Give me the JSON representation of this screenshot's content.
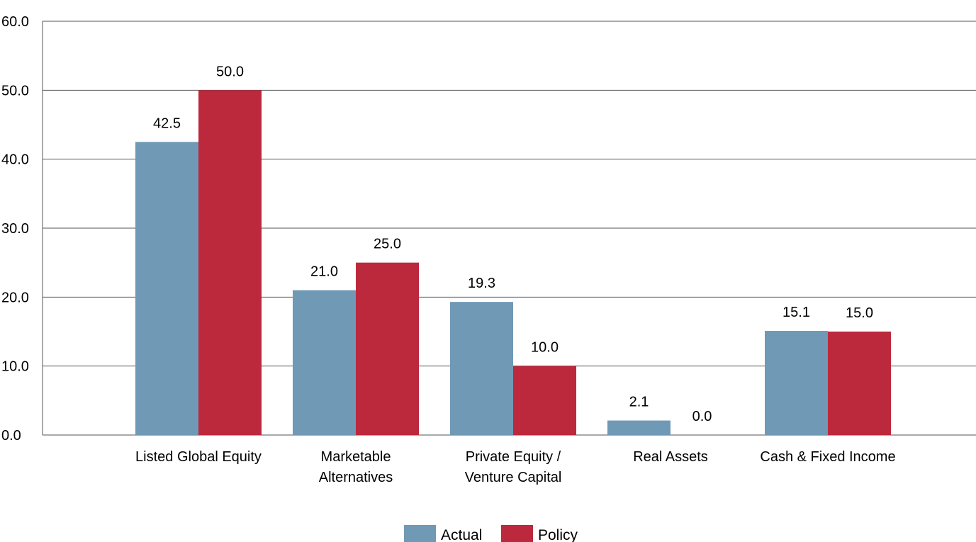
{
  "chart_data": {
    "type": "bar",
    "title": "",
    "xlabel": "",
    "ylabel": "",
    "ylim": [
      0,
      60
    ],
    "yticks": [
      0,
      10,
      20,
      30,
      40,
      50,
      60
    ],
    "ytick_labels": [
      "0.0",
      "10.0",
      "20.0",
      "30.0",
      "40.0",
      "50.0",
      "60.0"
    ],
    "grid": true,
    "legend": "bottom-center",
    "categories": [
      [
        "Listed Global Equity"
      ],
      [
        "Marketable",
        "Alternatives"
      ],
      [
        "Private Equity /",
        "Venture Capital"
      ],
      [
        "Real Assets"
      ],
      [
        "Cash & Fixed Income"
      ]
    ],
    "series": [
      {
        "name": "Actual",
        "color": "#7099b5",
        "values": [
          42.5,
          21.0,
          19.3,
          2.1,
          15.1
        ],
        "labels": [
          "42.5",
          "21.0",
          "19.3",
          "2.1",
          "15.1"
        ]
      },
      {
        "name": "Policy",
        "color": "#bc283c",
        "values": [
          50.0,
          25.0,
          10.0,
          0.0,
          15.0
        ],
        "labels": [
          "50.0",
          "25.0",
          "10.0",
          "0.0",
          "15.0"
        ]
      }
    ]
  }
}
